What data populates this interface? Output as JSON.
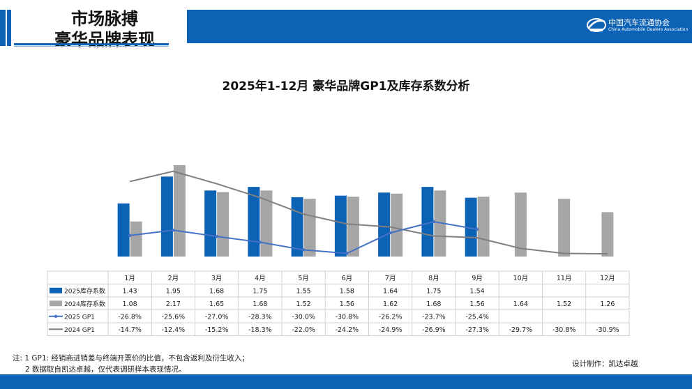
{
  "header": {
    "title_line1": "市场脉搏",
    "title_line2": "豪华品牌表现",
    "org_name": "中国汽车流通协会",
    "org_name_en": "China Automobile Dealers Association"
  },
  "footer": {
    "note_line1": "注: 1 GP1: 经销商进销差与终端开票价的比值，不包含返利及衍生收入；",
    "note_line2": "2 数据取自凯达卓越，仅代表调研样本表现情况。",
    "credit": "设计制作：凯达卓越"
  },
  "colors": {
    "brand_blue": "#0c62b4",
    "series_2025_bar": "#0c62b4",
    "series_2024_bar": "#a6a6a6",
    "series_2025_line": "#4472c4",
    "series_2024_line": "#7f7f7f"
  },
  "chart_data": {
    "type": "bar",
    "title": "2025年1-12月 豪华品牌GP1及库存系数分析",
    "categories": [
      "1月",
      "2月",
      "3月",
      "4月",
      "5月",
      "6月",
      "7月",
      "8月",
      "9月",
      "10月",
      "11月",
      "12月"
    ],
    "legend_position": "table",
    "grid": false,
    "series": [
      {
        "name": "2025库存系数",
        "kind": "bar",
        "axis": "left",
        "values": [
          1.43,
          1.95,
          1.68,
          1.75,
          1.55,
          1.58,
          1.64,
          1.75,
          1.54,
          null,
          null,
          null
        ],
        "labels": [
          "1.43",
          "1.95",
          "1.68",
          "1.75",
          "1.55",
          "1.58",
          "1.64",
          "1.75",
          "1.54",
          "",
          "",
          ""
        ]
      },
      {
        "name": "2024库存系数",
        "kind": "bar",
        "axis": "left",
        "values": [
          1.08,
          2.17,
          1.65,
          1.68,
          1.52,
          1.56,
          1.62,
          1.68,
          1.56,
          1.64,
          1.52,
          1.26
        ],
        "labels": [
          "1.08",
          "2.17",
          "1.65",
          "1.68",
          "1.52",
          "1.56",
          "1.62",
          "1.68",
          "1.56",
          "1.64",
          "1.52",
          "1.26"
        ]
      },
      {
        "name": "2025 GP1",
        "kind": "line",
        "axis": "right",
        "values": [
          -26.8,
          -25.6,
          -27.0,
          -28.3,
          -30.0,
          -30.8,
          -26.2,
          -23.7,
          -25.4,
          null,
          null,
          null
        ],
        "labels": [
          "-26.8%",
          "-25.6%",
          "-27.0%",
          "-28.3%",
          "-30.0%",
          "-30.8%",
          "-26.2%",
          "-23.7%",
          "-25.4%",
          "",
          "",
          ""
        ]
      },
      {
        "name": "2024 GP1",
        "kind": "line",
        "axis": "right",
        "values": [
          -14.7,
          -12.4,
          -15.2,
          -18.3,
          -22.0,
          -24.2,
          -24.9,
          -26.9,
          -27.3,
          -29.7,
          -30.8,
          -30.9
        ],
        "labels": [
          "-14.7%",
          "-12.4%",
          "-15.2%",
          "-18.3%",
          "-22.0%",
          "-24.2%",
          "-24.9%",
          "-26.9%",
          "-27.3%",
          "-29.7%",
          "-30.8%",
          "-30.9%"
        ]
      }
    ]
  }
}
